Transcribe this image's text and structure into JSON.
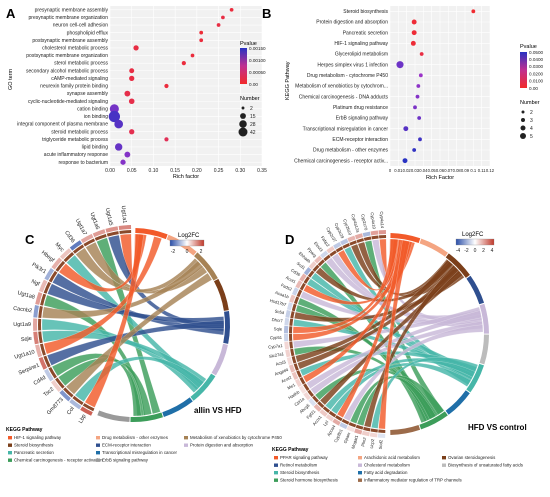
{
  "panels": [
    {
      "letter": "A",
      "chart_data": {
        "type": "scatter",
        "ylabel": "GO term",
        "xlabel": "Rich factor",
        "xticks": [
          "0.00",
          "0.05",
          "0.10",
          "0.15",
          "0.20",
          "0.25",
          "0.30",
          "0.35"
        ],
        "xlim": [
          0,
          0.35
        ],
        "categories": [
          "presynaptic membrane assembly",
          "presynaptic membrane organization",
          "neuron cell-cell adhesion",
          "phospholipid efflux",
          "postsynaptic membrane assembly",
          "cholesterol metabolic process",
          "postsynaptic membrane organization",
          "sterol metabolic process",
          "secondary alcohol metabolic process",
          "cAMP-mediated signaling",
          "neurexin family protein binding",
          "synapse assembly",
          "cyclic-nucleotide-mediated signaling",
          "cation binding",
          "ion binding",
          "integral component of plasma membrane",
          "steroid metabolic process",
          "triglyceride metabolic process",
          "lipid binding",
          "acute inflammatory response",
          "response to bacterium"
        ],
        "x": [
          0.28,
          0.26,
          0.25,
          0.21,
          0.21,
          0.06,
          0.19,
          0.17,
          0.05,
          0.05,
          0.13,
          0.04,
          0.05,
          0.01,
          0.01,
          0.02,
          0.05,
          0.13,
          0.02,
          0.04,
          0.03
        ],
        "pvalue": [
          0.0003,
          0.0004,
          0.0004,
          0.0002,
          0.0003,
          0.0004,
          0.0003,
          0.0003,
          0.0004,
          0.0004,
          0.0003,
          0.0005,
          0.0005,
          0.001,
          0.0013,
          0.0012,
          0.0006,
          0.0007,
          0.0011,
          0.0009,
          0.0009
        ],
        "number": [
          2,
          2,
          2,
          2,
          2,
          6,
          2,
          3,
          5,
          6,
          3,
          8,
          7,
          25,
          42,
          22,
          6,
          3,
          15,
          8,
          6
        ],
        "legend_color_title": "Pvalue",
        "legend_color_labels": [
          "0.00150",
          "0.00100",
          "0.00050",
          "0.00"
        ],
        "legend_size_title": "Number",
        "legend_size_labels": [
          "2",
          "15",
          "28",
          "42"
        ],
        "legend_size_values": [
          2,
          15,
          28,
          42
        ],
        "colors": [
          "#2832c2",
          "#9b33c8",
          "#e0305a",
          "#f22a2a"
        ]
      }
    },
    {
      "letter": "B",
      "chart_data": {
        "type": "scatter",
        "ylabel": "KEGG Pathway",
        "xlabel": "Rich Factor",
        "xticks": [
          "0",
          "0.01",
          "0.02",
          "0.03",
          "0.04",
          "0.05",
          "0.06",
          "0.07",
          "0.08",
          "0.09",
          "0.1",
          "0.11",
          "0.12"
        ],
        "xlim": [
          0,
          0.12
        ],
        "categories": [
          "Steroid biosynthesis",
          "Protein digestion and absorption",
          "Pancreatic secretion",
          "HIF-1 signaling pathway",
          "Glycerolipid metabolism",
          "Herpes simplex virus 1 infection",
          "Drug metabolism - cytochrome P450",
          "Metabolism of xenobiotics by cytochrom...",
          "Chemical carcinogenesis - DNA adducts",
          "Platinum drug resistance",
          "ErbB signaling pathway",
          "Transcriptional misregulation in cancer",
          "ECM-receptor interaction",
          "Drug metabolism - other enzymes",
          "Chemical carcinogenesis - receptor activ..."
        ],
        "x": [
          0.1,
          0.029,
          0.029,
          0.028,
          0.038,
          0.012,
          0.037,
          0.034,
          0.033,
          0.03,
          0.035,
          0.019,
          0.036,
          0.029,
          0.018
        ],
        "pvalue": [
          0.003,
          0.006,
          0.006,
          0.007,
          0.013,
          0.035,
          0.025,
          0.028,
          0.03,
          0.032,
          0.035,
          0.04,
          0.045,
          0.048,
          0.05
        ],
        "number": [
          2,
          3,
          3,
          3,
          2,
          5,
          2,
          2,
          2,
          2,
          2,
          3,
          2,
          2,
          3
        ],
        "legend_color_title": "Pvalue",
        "legend_color_labels": [
          "0.0500",
          "0.0400",
          "0.0300",
          "0.0200",
          "0.0100",
          "0.00"
        ],
        "legend_size_title": "Number",
        "legend_size_labels": [
          "2",
          "3",
          "4",
          "5"
        ],
        "legend_size_values": [
          2,
          3,
          4,
          5
        ],
        "colors": [
          "#2832c2",
          "#9b33c8",
          "#e0305a",
          "#f22a2a"
        ]
      }
    },
    {
      "letter": "C",
      "chart_data": {
        "type": "chord",
        "title": "allin VS HFD",
        "genes": [
          "Ugt1a1",
          "Ugt1a5",
          "Ugt1a6",
          "Ugt1a7",
          "Cd36",
          "Myc",
          "Hbegf",
          "Pik3r1",
          "Ngf",
          "Ugt1a8",
          "Cacnb2",
          "Ugt1a9",
          "Sqle",
          "Ugt1a10",
          "Serpine1",
          "Cd4d",
          "Tsc2",
          "Gm8773",
          "Col",
          "Lbp"
        ],
        "logfc": [
          1.2,
          1.1,
          1.0,
          0.9,
          -1.5,
          0.6,
          0.8,
          -0.9,
          0.7,
          1.0,
          -1.1,
          0.9,
          1.3,
          0.8,
          1.4,
          -0.6,
          0.5,
          -1.2,
          -0.8,
          1.6
        ],
        "legend_title": "Log2FC",
        "legend_ticks": [
          "-2",
          "0",
          "2"
        ],
        "pathway_title": "KEGG Pathway",
        "pathways": [
          {
            "name": "HIF-1 signaling pathway",
            "color": "#f25a2a"
          },
          {
            "name": "Drug metabolism - other enzymes",
            "color": "#f4a582"
          },
          {
            "name": "Metabolism of xenobiotics by cytochrome P450",
            "color": "#a68255"
          },
          {
            "name": "Steroid biosynthesis",
            "color": "#7b3f1a"
          },
          {
            "name": "ECM-receptor interaction",
            "color": "#2f4f8f"
          },
          {
            "name": "Protein digestion and absorption",
            "color": "#c8b8d8"
          },
          {
            "name": "Pancreatic secretion",
            "color": "#46b6a8"
          },
          {
            "name": "Transcriptional misregulation in cancer",
            "color": "#1f6fa8"
          },
          {
            "name": "Chemical carcinogenesis - receptor activation",
            "color": "#3c9d5a"
          },
          {
            "name": "ErbB signaling pathway",
            "color": "#9a9a9a"
          }
        ],
        "legend_columns": [
          [
            "HIF-1 signaling pathway",
            "Steroid biosynthesis",
            "Pancreatic secretion",
            "Chemical carcinogenesis - receptor activation"
          ],
          [
            "Drug metabolism - other enzymes",
            "ECM-receptor interaction",
            "Transcriptional misregulation in cancer",
            "ErbB signaling pathway"
          ],
          [
            "Metabolism of xenobiotics by cytochrome P450",
            "Protein digestion and absorption"
          ]
        ]
      }
    },
    {
      "letter": "D",
      "chart_data": {
        "type": "chord",
        "title": "HFD VS control",
        "genes": [
          "Cyp4a14",
          "Cyp4a10",
          "Cyp2c70",
          "Cyp4a12a",
          "Cyp2b10",
          "Cyp2c29",
          "Cyp2c37",
          "Fabp2",
          "Elovl3",
          "Pparg",
          "Ehhadh",
          "Scd1",
          "Cd36",
          "Acot1",
          "Fads2",
          "Acaa1b",
          "Hsd17b7",
          "Sc5d",
          "Dhcr7",
          "Sqle",
          "Cyp51",
          "Cyp7a1",
          "Slc27a1",
          "Acsl3",
          "Angptl4",
          "Acot2",
          "Me1",
          "Hadhb",
          "Cpt1a",
          "Abcg5",
          "Fgf21",
          "Acox1",
          "Lpl",
          "Apoa4",
          "Cyp8b1",
          "Gpam",
          "Mogat1",
          "Plin2",
          "Ucp2",
          "Scd2"
        ],
        "logfc": [
          2.1,
          1.9,
          -1.6,
          1.7,
          1.5,
          -1.3,
          -1.2,
          1.1,
          -0.9,
          1.3,
          1.0,
          -1.8,
          1.6,
          1.4,
          -1.0,
          1.2,
          -0.8,
          -1.1,
          -0.9,
          -1.5,
          -1.0,
          0.8,
          0.9,
          0.7,
          1.3,
          1.2,
          0.9,
          0.6,
          0.8,
          -0.7,
          1.5,
          1.1,
          0.9,
          1.7,
          -1.2,
          0.6,
          1.8,
          1.0,
          0.8,
          -0.6
        ],
        "legend_title": "Log2FC",
        "legend_ticks": [
          "-4",
          "-2",
          "0",
          "2",
          "4"
        ],
        "pathway_title": "KEGG Pathway",
        "pathways": [
          {
            "name": "PPAR signaling pathway",
            "color": "#f25a2a"
          },
          {
            "name": "Arachidonic acid metabolism",
            "color": "#f4a582"
          },
          {
            "name": "Ovarian steroidogenesis",
            "color": "#7b3f1a"
          },
          {
            "name": "Retinol metabolism",
            "color": "#2f4f8f"
          },
          {
            "name": "Cholesterol metabolism",
            "color": "#c8b8d8"
          },
          {
            "name": "Biosynthesis of unsaturated fatty acids",
            "color": "#bcbcbc"
          },
          {
            "name": "Steroid biosynthesis",
            "color": "#46b6a8"
          },
          {
            "name": "Fatty acid degradation",
            "color": "#1f6fa8"
          },
          {
            "name": "Steroid hormone biosynthesis",
            "color": "#3c9d5a"
          },
          {
            "name": "Inflammatory mediator regulation of TRP channels",
            "color": "#9c6b4a"
          }
        ],
        "legend_columns": [
          [
            "PPAR signaling pathway",
            "Retinol metabolism",
            "Steroid biosynthesis",
            "Steroid hormone biosynthesis"
          ],
          [
            "Arachidonic acid metabolism",
            "Cholesterol metabolism",
            "Fatty acid degradation",
            "Inflammatory mediator regulation of TRP channels"
          ],
          [
            "Ovarian steroidogenesis",
            "Biosynthesis of unsaturated fatty acids"
          ]
        ]
      }
    }
  ]
}
